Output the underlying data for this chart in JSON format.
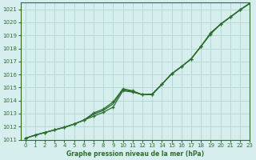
{
  "title": "Graphe pression niveau de la mer (hPa)",
  "xlim": [
    -0.5,
    23
  ],
  "ylim": [
    1011,
    1021.5
  ],
  "xticks": [
    0,
    1,
    2,
    3,
    4,
    5,
    6,
    7,
    8,
    9,
    10,
    11,
    12,
    13,
    14,
    15,
    16,
    17,
    18,
    19,
    20,
    21,
    22,
    23
  ],
  "yticks": [
    1011,
    1012,
    1013,
    1014,
    1015,
    1016,
    1017,
    1018,
    1019,
    1020,
    1021
  ],
  "background_color": "#d6eeee",
  "grid_color": "#b8d8d8",
  "line_color": "#2d6e2d",
  "series1_y": [
    1011.1,
    1011.35,
    1011.55,
    1011.75,
    1011.95,
    1012.2,
    1012.5,
    1012.8,
    1013.1,
    1013.5,
    1014.75,
    1014.65,
    1014.45,
    1014.5,
    1015.25,
    1016.05,
    1016.6,
    1017.2,
    1018.15,
    1019.2,
    1019.85,
    1020.4,
    1020.95,
    1021.45
  ],
  "series2_y": [
    1011.1,
    1011.35,
    1011.55,
    1011.75,
    1011.95,
    1012.2,
    1012.5,
    1013.05,
    1013.35,
    1013.9,
    1014.9,
    1014.75,
    1014.45,
    1014.45,
    1015.25,
    1016.05,
    1016.6,
    1017.2,
    1018.15,
    1019.1,
    1019.85,
    1020.4,
    1020.95,
    1021.45
  ],
  "series3_y": [
    1011.1,
    1011.35,
    1011.55,
    1011.75,
    1011.95,
    1012.2,
    1012.5,
    1012.95,
    1013.25,
    1013.75,
    1014.85,
    1014.7,
    1014.45,
    1014.5,
    1015.25,
    1016.05,
    1016.6,
    1017.2,
    1018.15,
    1019.15,
    1019.85,
    1020.4,
    1020.95,
    1021.45
  ],
  "tick_fontsize": 5,
  "xlabel_fontsize": 5.5
}
